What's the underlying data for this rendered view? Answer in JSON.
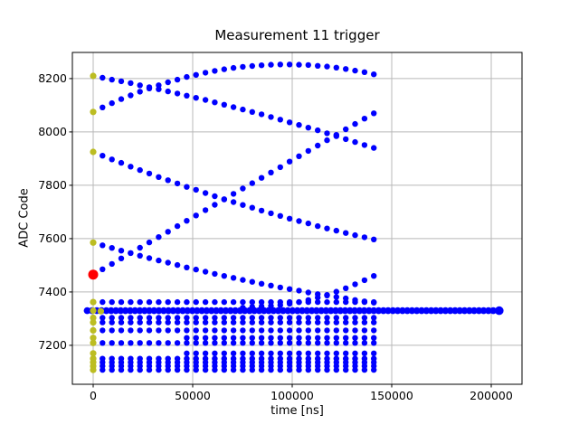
{
  "figure": {
    "title": "Measurement 11 trigger",
    "xlabel": "time [ns]",
    "ylabel": "ADC Code"
  },
  "chart_data": {
    "type": "scatter",
    "title": "Measurement 11 trigger",
    "xlabel": "time [ns]",
    "ylabel": "ADC Code",
    "grid": true,
    "legend": "none",
    "xlim": [
      -10455,
      215455
    ],
    "ylim": [
      7054,
      8298
    ],
    "x_ticks": [
      0,
      50000,
      100000,
      150000,
      200000
    ],
    "y_ticks": [
      7200,
      7400,
      7600,
      7800,
      8000,
      8200
    ],
    "colors": {
      "trace": "#0000ff",
      "start_marker": "#bcbd22",
      "trigger": "#ff0000",
      "grid": "#b8b8b8"
    },
    "series": [
      {
        "name": "trace-descending-from-8210",
        "kind": "trace",
        "color": "#0000ff",
        "size": 3.2,
        "x_start": 0,
        "x_step": 4700,
        "y": [
          8210,
          8203,
          8196,
          8190,
          8183,
          8175,
          8168,
          8160,
          8152,
          8144,
          8136,
          8128,
          8120,
          8111,
          8102,
          8093,
          8084,
          8075,
          8066,
          8056,
          8046,
          8036,
          8026,
          8016,
          8006,
          7995,
          7984,
          7973,
          7962,
          7951,
          7940
        ]
      },
      {
        "name": "trace-rising-to-peak-8253",
        "kind": "trace",
        "color": "#0000ff",
        "size": 3.2,
        "x_start": 0,
        "x_step": 4700,
        "y": [
          8075,
          8092,
          8108,
          8123,
          8137,
          8151,
          8163,
          8175,
          8186,
          8196,
          8206,
          8214,
          8222,
          8229,
          8235,
          8240,
          8244,
          8247,
          8250,
          8252,
          8253,
          8253,
          8252,
          8251,
          8248,
          8245,
          8241,
          8236,
          8230,
          8224,
          8216
        ]
      },
      {
        "name": "trace-descending-from-7925",
        "kind": "trace",
        "color": "#0000ff",
        "size": 3.2,
        "x_start": 0,
        "x_step": 4700,
        "y": [
          7925,
          7911,
          7897,
          7884,
          7870,
          7857,
          7844,
          7831,
          7819,
          7807,
          7794,
          7783,
          7771,
          7759,
          7748,
          7737,
          7726,
          7716,
          7705,
          7695,
          7685,
          7675,
          7666,
          7657,
          7647,
          7638,
          7630,
          7621,
          7613,
          7605,
          7597
        ]
      },
      {
        "name": "trace-rising-diagonal-from-trigger",
        "kind": "trace",
        "color": "#0000ff",
        "size": 3.2,
        "x_start": 4700,
        "x_step": 4700,
        "y": [
          7485,
          7505,
          7526,
          7546,
          7566,
          7586,
          7606,
          7626,
          7647,
          7667,
          7687,
          7707,
          7727,
          7747,
          7768,
          7788,
          7808,
          7828,
          7848,
          7868,
          7889,
          7909,
          7929,
          7949,
          7969,
          7989,
          8010,
          8030,
          8050,
          8070
        ]
      },
      {
        "name": "trace-descending-from-7585",
        "kind": "trace",
        "color": "#0000ff",
        "size": 3.2,
        "x_start": 0,
        "x_step": 4700,
        "y": [
          7585,
          7575,
          7565,
          7555,
          7546,
          7536,
          7527,
          7518,
          7510,
          7501,
          7492,
          7484,
          7476,
          7468,
          7460,
          7453,
          7445,
          7438,
          7431,
          7424,
          7417,
          7411,
          7405,
          7398,
          7392,
          7387,
          7381,
          7376,
          7370,
          7365,
          7360
        ]
      },
      {
        "name": "trace-rising-from-band",
        "kind": "trace",
        "color": "#0000ff",
        "size": 3.2,
        "x_start": 75200,
        "x_step": 4700,
        "y": [
          7341,
          7344,
          7346,
          7348,
          7351,
          7356,
          7362,
          7370,
          7379,
          7389,
          7401,
          7414,
          7429,
          7444,
          7460
        ]
      },
      {
        "name": "row-7362",
        "kind": "const",
        "color": "#0000ff",
        "size": 3.2,
        "y": 7362,
        "x_range": [
          0,
          141000
        ],
        "step": 4700
      },
      {
        "name": "row-7303",
        "kind": "const",
        "color": "#0000ff",
        "size": 3.2,
        "y": 7303,
        "x_range": [
          0,
          141000
        ],
        "step": 4700
      },
      {
        "name": "row-7286",
        "kind": "const",
        "color": "#0000ff",
        "size": 3.2,
        "y": 7286,
        "x_range": [
          0,
          141000
        ],
        "step": 4700
      },
      {
        "name": "row-7256",
        "kind": "const",
        "color": "#0000ff",
        "size": 3.2,
        "y": 7256,
        "x_range": [
          0,
          141000
        ],
        "step": 4700
      },
      {
        "name": "row-7228",
        "kind": "const",
        "color": "#0000ff",
        "size": 3.2,
        "y": 7228,
        "x_range": [
          47000,
          141000
        ],
        "step": 4700
      },
      {
        "name": "row-7209",
        "kind": "const",
        "color": "#0000ff",
        "size": 3.2,
        "y": 7209,
        "x_range": [
          0,
          141000
        ],
        "step": 4700
      },
      {
        "name": "row-7170",
        "kind": "const",
        "color": "#0000ff",
        "size": 3.2,
        "y": 7170,
        "x_range": [
          47000,
          141000
        ],
        "step": 4700
      },
      {
        "name": "row-7150",
        "kind": "const",
        "color": "#0000ff",
        "size": 3.2,
        "y": 7150,
        "x_range": [
          0,
          141000
        ],
        "step": 4700
      },
      {
        "name": "row-7136",
        "kind": "const",
        "color": "#0000ff",
        "size": 3.2,
        "y": 7136,
        "x_range": [
          0,
          141000
        ],
        "step": 4700
      },
      {
        "name": "row-7122",
        "kind": "const",
        "color": "#0000ff",
        "size": 3.2,
        "y": 7122,
        "x_range": [
          0,
          141000
        ],
        "step": 4700
      },
      {
        "name": "row-7108",
        "kind": "const",
        "color": "#0000ff",
        "size": 3.2,
        "y": 7108,
        "x_range": [
          0,
          141000
        ],
        "step": 4700
      },
      {
        "name": "baseline-band-7330",
        "kind": "const",
        "color": "#0000ff",
        "size": 3.8,
        "y": 7330,
        "x_range": [
          -3000,
          204000
        ],
        "step": 2400,
        "end_cap": 4.8
      },
      {
        "name": "start-markers",
        "kind": "points",
        "color": "#bcbd22",
        "size": 3.6,
        "points": [
          [
            0,
            8210
          ],
          [
            0,
            8075
          ],
          [
            0,
            7925
          ],
          [
            0,
            7585
          ],
          [
            0,
            7362
          ],
          [
            0,
            7330
          ],
          [
            3800,
            7328
          ],
          [
            0,
            7303
          ],
          [
            0,
            7286
          ],
          [
            0,
            7256
          ],
          [
            0,
            7228
          ],
          [
            0,
            7209
          ],
          [
            0,
            7170
          ],
          [
            0,
            7150
          ],
          [
            0,
            7136
          ],
          [
            0,
            7122
          ],
          [
            0,
            7108
          ]
        ]
      },
      {
        "name": "trigger-point",
        "kind": "points",
        "color": "#ff0000",
        "size": 5.5,
        "points": [
          [
            0,
            7465
          ]
        ]
      }
    ]
  }
}
